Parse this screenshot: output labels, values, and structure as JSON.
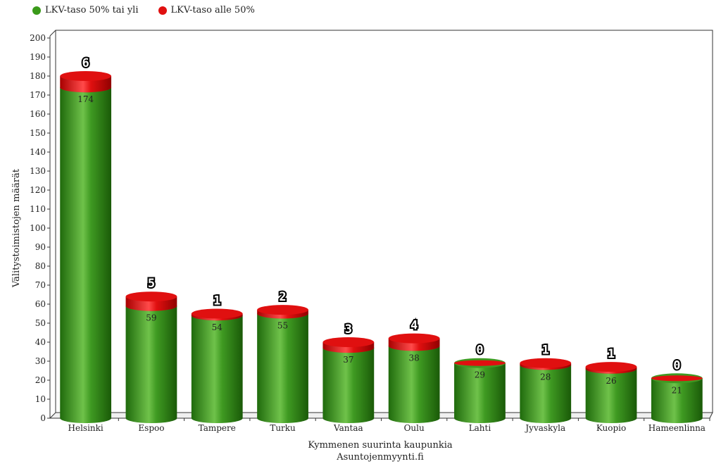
{
  "legend": [
    {
      "label": "LKV-taso 50% tai yli",
      "color": "#3a9a1a"
    },
    {
      "label": "LKV-taso alle 50%",
      "color": "#e01010"
    }
  ],
  "chart_data": {
    "type": "bar",
    "stacked": true,
    "categories": [
      "Helsinki",
      "Espoo",
      "Tampere",
      "Turku",
      "Vantaa",
      "Oulu",
      "Lahti",
      "Jyvaskyla",
      "Kuopio",
      "Hameenlinna"
    ],
    "series": [
      {
        "name": "LKV-taso 50% tai yli",
        "color": "#3a9a1a",
        "values": [
          174,
          59,
          54,
          55,
          37,
          38,
          29,
          28,
          26,
          21
        ]
      },
      {
        "name": "LKV-taso alle 50%",
        "color": "#e01010",
        "values": [
          6,
          5,
          1,
          2,
          3,
          4,
          0,
          1,
          1,
          0
        ]
      }
    ],
    "ylabel": "Välitystoimistojen määrät",
    "xlabel": "Kymmenen suurinta kaupunkia",
    "xlabel2": "Asuntojenmyynti.fi",
    "ylim": [
      0,
      200
    ],
    "ytick_step": 10,
    "grid": false,
    "legend_position": "top-left"
  }
}
